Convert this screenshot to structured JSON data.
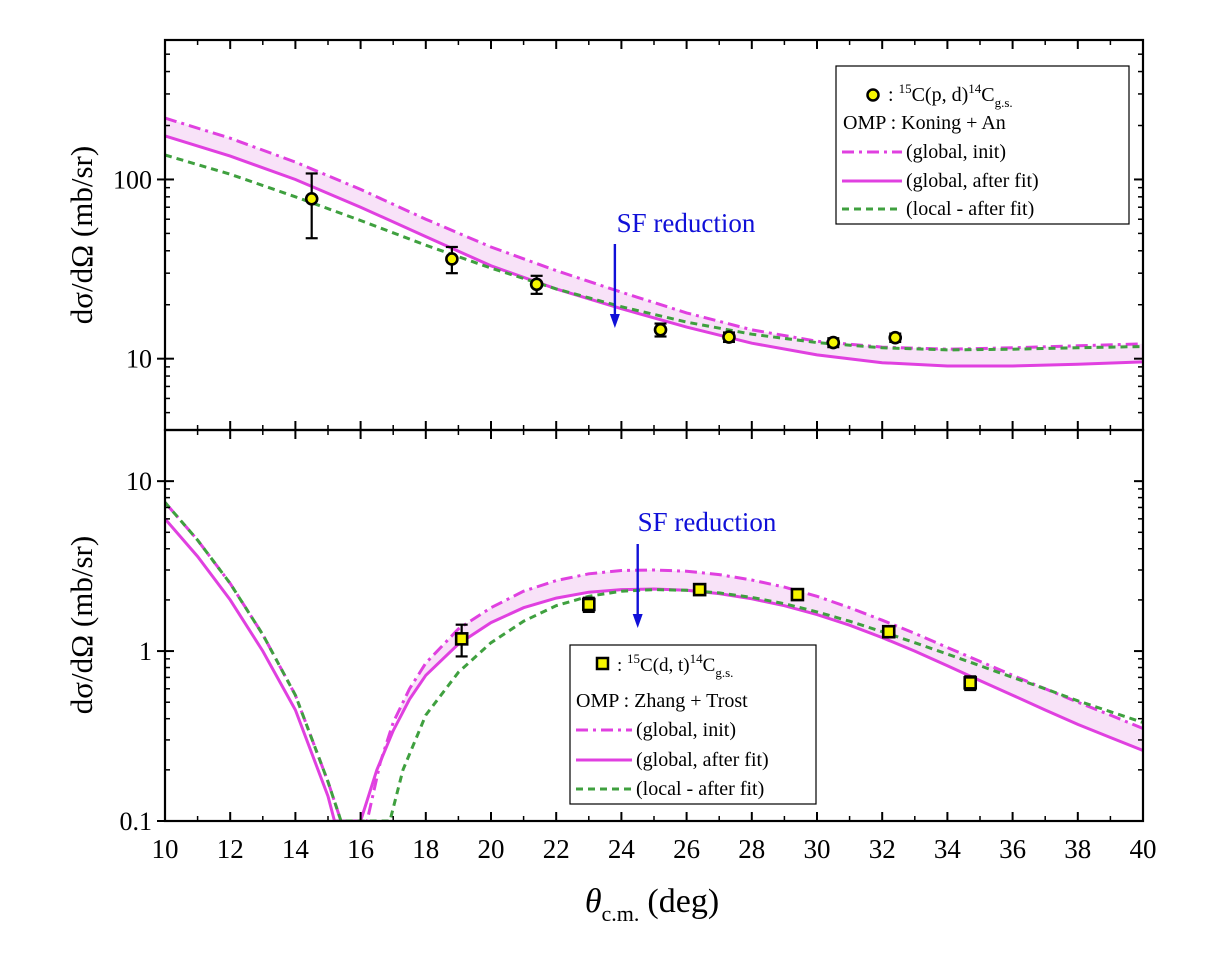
{
  "colors": {
    "magenta": "#e040e0",
    "green": "#3fa03f",
    "marker": "#f5f500",
    "arrow": "#1010d8",
    "band": "#f8e2f8"
  },
  "xaxis": {
    "label_theta": "θ",
    "label_sub": "c.m.",
    "label_unit": "(deg)",
    "xlim": [
      10,
      40
    ],
    "ticks": [
      10,
      12,
      14,
      16,
      18,
      20,
      22,
      24,
      26,
      28,
      30,
      32,
      34,
      36,
      38,
      40
    ]
  },
  "chart_data": [
    {
      "type": "line",
      "id": "top",
      "yscale": "log",
      "ylim": [
        4,
        600
      ],
      "yticks": [
        {
          "v": 10,
          "label": "10"
        },
        {
          "v": 100,
          "label": "100"
        }
      ],
      "ylabel": {
        "prefix": "dσ/dΩ",
        "unit": "(mb/sr)"
      },
      "annotation": {
        "text": "SF reduction",
        "x": 23.8
      },
      "legend": {
        "placement": "top-right",
        "data_label": {
          "pre": ": ",
          "sup1": "15",
          "mid": "C(p, d)",
          "sup2": "14",
          "c": "C",
          "sub": "g.s."
        },
        "omp": "OMP : Koning + An",
        "entries": [
          "(global, init)",
          "(global, after fit)",
          "(local - after fit)"
        ]
      },
      "experimental": {
        "marker": "circle",
        "points": [
          {
            "x": 14.5,
            "y": 78,
            "lo": 47,
            "hi": 108
          },
          {
            "x": 18.8,
            "y": 36,
            "lo": 30,
            "hi": 42
          },
          {
            "x": 21.4,
            "y": 26,
            "lo": 23,
            "hi": 29
          },
          {
            "x": 25.2,
            "y": 14.5,
            "lo": 13.3,
            "hi": 15.7
          },
          {
            "x": 27.3,
            "y": 13.2,
            "lo": 12.4,
            "hi": 14.0
          },
          {
            "x": 30.5,
            "y": 12.3,
            "lo": 11.6,
            "hi": 13.0
          },
          {
            "x": 32.4,
            "y": 13.1,
            "lo": 12.4,
            "hi": 13.8
          }
        ]
      },
      "series": [
        {
          "name": "(global, init)",
          "style": "dashdot",
          "x": [
            10,
            12,
            14,
            16,
            18,
            20,
            22,
            24,
            26,
            28,
            30,
            32,
            34,
            36,
            38,
            40
          ],
          "y": [
            220,
            170,
            125,
            88,
            60,
            42,
            31,
            23.5,
            18,
            14.5,
            12.5,
            11.6,
            11.3,
            11.5,
            11.8,
            12.1
          ]
        },
        {
          "name": "(global, after fit)",
          "style": "solid",
          "x": [
            10,
            12,
            14,
            16,
            18,
            20,
            22,
            24,
            26,
            28,
            30,
            32,
            34,
            36,
            38,
            40
          ],
          "y": [
            175,
            135,
            100,
            70,
            48,
            33,
            24.5,
            19,
            15,
            12.2,
            10.5,
            9.5,
            9.1,
            9.1,
            9.3,
            9.6
          ]
        },
        {
          "name": "(local - after fit)",
          "style": "dashed",
          "x": [
            10,
            12,
            14,
            16,
            18,
            20,
            22,
            24,
            26,
            28,
            30,
            32,
            34,
            36,
            38,
            40
          ],
          "y": [
            137,
            107,
            80,
            59,
            43,
            32,
            24.5,
            19.5,
            16,
            13.7,
            12.3,
            11.5,
            11.2,
            11.3,
            11.5,
            11.7
          ]
        }
      ]
    },
    {
      "type": "line",
      "id": "bottom",
      "yscale": "log",
      "ylim": [
        0.1,
        20
      ],
      "yticks": [
        {
          "v": 0.1,
          "label": "0.1"
        },
        {
          "v": 1,
          "label": "1"
        },
        {
          "v": 10,
          "label": "10"
        }
      ],
      "ylabel": {
        "prefix": "dσ/dΩ",
        "unit": "(mb/sr)"
      },
      "annotation": {
        "text": "SF reduction",
        "x": 24.5
      },
      "legend": {
        "placement": "bottom-center",
        "data_label": {
          "pre": ": ",
          "sup1": "15",
          "mid": "C(d, t)",
          "sup2": "14",
          "c": "C",
          "sub": "g.s."
        },
        "omp": "OMP : Zhang + Trost",
        "entries": [
          "(global, init)",
          "(global, after fit)",
          "(local - after fit)"
        ]
      },
      "experimental": {
        "marker": "square",
        "points": [
          {
            "x": 19.1,
            "y": 1.18,
            "lo": 0.93,
            "hi": 1.43
          },
          {
            "x": 23.0,
            "y": 1.88,
            "lo": 1.7,
            "hi": 2.06
          },
          {
            "x": 26.4,
            "y": 2.3,
            "lo": 2.18,
            "hi": 2.42
          },
          {
            "x": 29.4,
            "y": 2.15,
            "lo": 2.03,
            "hi": 2.27
          },
          {
            "x": 32.2,
            "y": 1.3,
            "lo": 1.22,
            "hi": 1.38
          },
          {
            "x": 34.7,
            "y": 0.65,
            "lo": 0.59,
            "hi": 0.71
          }
        ]
      },
      "series": [
        {
          "name": "(global, init)",
          "style": "dashdot",
          "x": [
            10,
            11,
            12,
            13,
            14,
            15,
            15.4,
            16.2,
            16.6,
            17,
            17.5,
            18,
            19,
            20,
            21,
            22,
            23,
            24,
            25,
            26,
            27,
            28,
            29,
            30,
            31,
            32,
            33,
            34,
            35,
            36,
            37,
            38,
            39,
            40
          ],
          "y": [
            7.5,
            4.5,
            2.5,
            1.25,
            0.55,
            0.17,
            0.1,
            0.1,
            0.22,
            0.38,
            0.6,
            0.85,
            1.35,
            1.8,
            2.25,
            2.6,
            2.85,
            2.98,
            3.0,
            2.95,
            2.82,
            2.62,
            2.38,
            2.1,
            1.8,
            1.52,
            1.27,
            1.05,
            0.87,
            0.72,
            0.6,
            0.5,
            0.42,
            0.35
          ]
        },
        {
          "name": "(global, after fit)",
          "style": "solid",
          "x": [
            10,
            11,
            12,
            13,
            14,
            15,
            15.2,
            16,
            16.5,
            17,
            17.5,
            18,
            19,
            20,
            21,
            22,
            23,
            24,
            25,
            26,
            27,
            28,
            29,
            30,
            31,
            32,
            33,
            34,
            35,
            36,
            37,
            38,
            39,
            40
          ],
          "y": [
            6.0,
            3.6,
            2.0,
            1.0,
            0.45,
            0.14,
            0.1,
            0.1,
            0.2,
            0.34,
            0.52,
            0.72,
            1.1,
            1.47,
            1.8,
            2.05,
            2.22,
            2.3,
            2.32,
            2.28,
            2.18,
            2.03,
            1.85,
            1.64,
            1.42,
            1.2,
            1.0,
            0.82,
            0.67,
            0.55,
            0.45,
            0.37,
            0.31,
            0.26
          ]
        },
        {
          "name": "(local - after fit)",
          "style": "dashed",
          "x": [
            10,
            11,
            12,
            13,
            14,
            15,
            15.4,
            16.9,
            17.3,
            18,
            19,
            20,
            21,
            22,
            23,
            24,
            25,
            26,
            27,
            28,
            29,
            30,
            31,
            32,
            33,
            34,
            35,
            36,
            37,
            38,
            39,
            40
          ],
          "y": [
            7.5,
            4.5,
            2.5,
            1.25,
            0.55,
            0.17,
            0.1,
            0.1,
            0.2,
            0.42,
            0.75,
            1.12,
            1.5,
            1.85,
            2.1,
            2.25,
            2.3,
            2.28,
            2.2,
            2.07,
            1.9,
            1.7,
            1.5,
            1.3,
            1.12,
            0.96,
            0.82,
            0.7,
            0.6,
            0.51,
            0.44,
            0.38
          ]
        }
      ]
    }
  ]
}
